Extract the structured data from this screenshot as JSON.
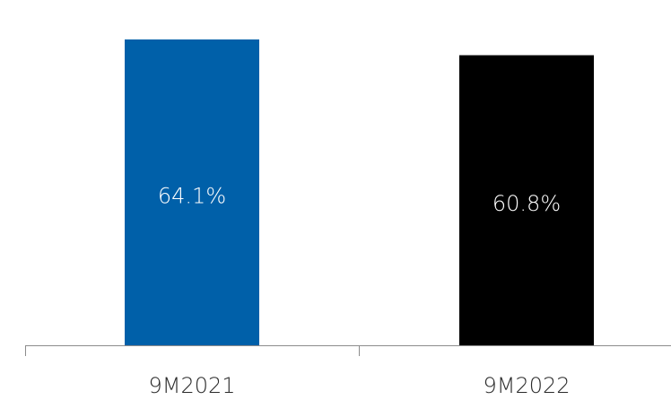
{
  "chart_data": {
    "type": "bar",
    "categories": [
      "9M2021",
      "9M2022"
    ],
    "values": [
      64.1,
      60.8
    ],
    "value_labels": [
      "64.1%",
      "60.8%"
    ],
    "colors": [
      "#0060a9",
      "#000000"
    ],
    "title": "",
    "xlabel": "",
    "ylabel": "",
    "ylim": [
      0,
      64.1
    ],
    "grid": false,
    "legend": "none"
  }
}
